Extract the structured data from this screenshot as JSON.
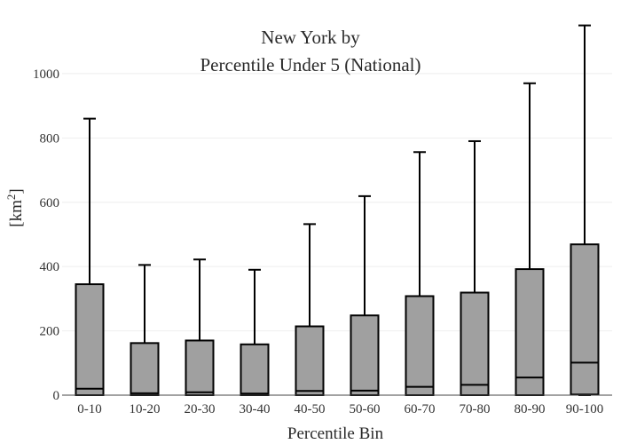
{
  "chart_data": {
    "type": "box",
    "title_lines": [
      "New York  by",
      "Percentile Under 5 (National)"
    ],
    "xlabel": "Percentile Bin",
    "ylabel": "[km",
    "ylabel_sup": "2",
    "ylabel_suffix": "]",
    "ylim": [
      0,
      1160
    ],
    "yticks": [
      0,
      200,
      400,
      600,
      800,
      1000
    ],
    "grid": true,
    "box_color": "#a0a0a0",
    "categories": [
      "0-10",
      "10-20",
      "20-30",
      "30-40",
      "40-50",
      "50-60",
      "60-70",
      "70-80",
      "80-90",
      "90-100"
    ],
    "boxes": [
      {
        "min": 0,
        "q1": 0,
        "median": 20,
        "q3": 345,
        "max": 860
      },
      {
        "min": 0,
        "q1": 0,
        "median": 6,
        "q3": 162,
        "max": 405
      },
      {
        "min": 0,
        "q1": 0,
        "median": 9,
        "q3": 170,
        "max": 422
      },
      {
        "min": 0,
        "q1": 0,
        "median": 5,
        "q3": 158,
        "max": 390
      },
      {
        "min": 0,
        "q1": 0,
        "median": 13,
        "q3": 214,
        "max": 532
      },
      {
        "min": 0,
        "q1": 0,
        "median": 14,
        "q3": 248,
        "max": 619
      },
      {
        "min": 0,
        "q1": 0,
        "median": 26,
        "q3": 308,
        "max": 756
      },
      {
        "min": 0,
        "q1": 0,
        "median": 32,
        "q3": 319,
        "max": 790
      },
      {
        "min": 0,
        "q1": 0,
        "median": 55,
        "q3": 392,
        "max": 970
      },
      {
        "min": 0,
        "q1": 2,
        "median": 101,
        "q3": 469,
        "max": 1150
      }
    ]
  }
}
